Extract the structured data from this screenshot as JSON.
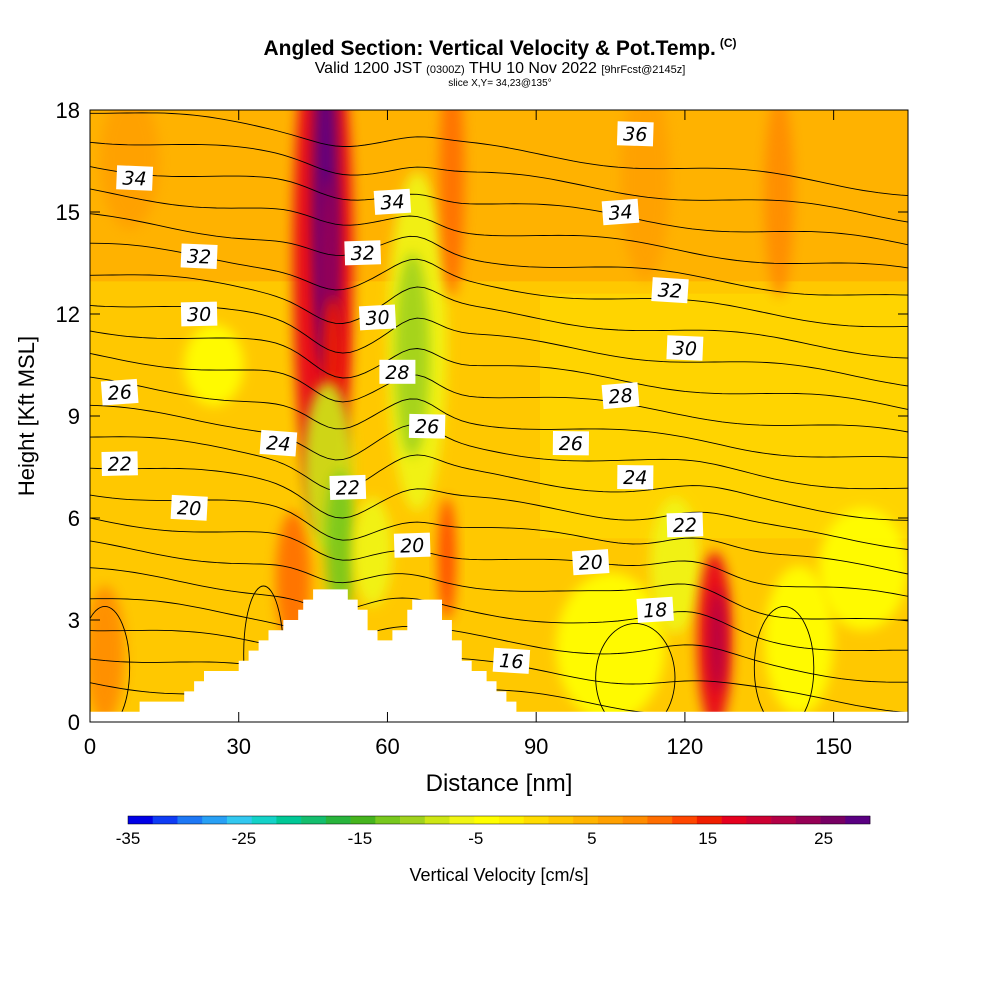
{
  "title": {
    "main": "Angled Section: Vertical Velocity & Pot.Temp.",
    "copyright": "(C)",
    "valid_prefix": "Valid 1200 JST",
    "valid_utc": "(0300Z)",
    "valid_date": "THU 10 Nov 2022",
    "forecast": "[9hrFcst@2145z]",
    "slice": "slice X,Y= 34,23@135°"
  },
  "chart_data": {
    "type": "heatmap",
    "xlabel": "Distance [nm]",
    "ylabel": "Height [Kft MSL]",
    "xlim": [
      0,
      165
    ],
    "ylim": [
      0,
      18
    ],
    "xticks": [
      0,
      30,
      60,
      90,
      120,
      150
    ],
    "yticks": [
      0,
      3,
      6,
      9,
      12,
      15,
      18
    ],
    "colorbar": {
      "label": "Vertical Velocity [cm/s]",
      "ticks": [
        -35,
        -25,
        -15,
        -5,
        5,
        15,
        25
      ],
      "range": [
        -35,
        29
      ],
      "colors": [
        "#0000e6",
        "#0f3cf5",
        "#1e78f5",
        "#28a0f5",
        "#32c8f0",
        "#14d2c8",
        "#00c896",
        "#14be6e",
        "#28b43c",
        "#46b41e",
        "#78c81e",
        "#a0d21e",
        "#cde614",
        "#f0f514",
        "#ffff00",
        "#fff000",
        "#ffdc00",
        "#ffc800",
        "#ffb400",
        "#ffa000",
        "#ff8c00",
        "#ff6e00",
        "#ff4600",
        "#f01e00",
        "#e6001e",
        "#cd0032",
        "#b40046",
        "#960055",
        "#780064",
        "#5a0082"
      ]
    },
    "terrain": [
      [
        0,
        0.3
      ],
      [
        10,
        0.3
      ],
      [
        10,
        0.6
      ],
      [
        19,
        0.6
      ],
      [
        19,
        0.9
      ],
      [
        21,
        0.9
      ],
      [
        21,
        1.2
      ],
      [
        23,
        1.2
      ],
      [
        23,
        1.5
      ],
      [
        30,
        1.5
      ],
      [
        30,
        1.8
      ],
      [
        32,
        1.8
      ],
      [
        32,
        2.1
      ],
      [
        34,
        2.1
      ],
      [
        34,
        2.4
      ],
      [
        36,
        2.4
      ],
      [
        36,
        2.7
      ],
      [
        39,
        2.7
      ],
      [
        39,
        3.0
      ],
      [
        42,
        3.0
      ],
      [
        42,
        3.3
      ],
      [
        43,
        3.3
      ],
      [
        43,
        3.6
      ],
      [
        45,
        3.6
      ],
      [
        45,
        3.9
      ],
      [
        52,
        3.9
      ],
      [
        52,
        3.6
      ],
      [
        54,
        3.6
      ],
      [
        54,
        3.3
      ],
      [
        56,
        3.3
      ],
      [
        56,
        2.7
      ],
      [
        58,
        2.7
      ],
      [
        58,
        2.4
      ],
      [
        61,
        2.4
      ],
      [
        61,
        2.7
      ],
      [
        64,
        2.7
      ],
      [
        64,
        3.3
      ],
      [
        65,
        3.3
      ],
      [
        65,
        3.6
      ],
      [
        71,
        3.6
      ],
      [
        71,
        3.0
      ],
      [
        73,
        3.0
      ],
      [
        73,
        2.4
      ],
      [
        75,
        2.4
      ],
      [
        75,
        1.8
      ],
      [
        77,
        1.8
      ],
      [
        77,
        1.5
      ],
      [
        80,
        1.5
      ],
      [
        80,
        1.2
      ],
      [
        82,
        1.2
      ],
      [
        82,
        0.9
      ],
      [
        84,
        0.9
      ],
      [
        84,
        0.6
      ],
      [
        86,
        0.6
      ],
      [
        86,
        0.3
      ],
      [
        165,
        0.3
      ]
    ],
    "cells": [
      {
        "x": 47,
        "y": 13.5,
        "rx": 6,
        "ry": 8,
        "value": 18
      },
      {
        "x": 47.5,
        "y": 15.5,
        "rx": 2.5,
        "ry": 5,
        "value": 28
      },
      {
        "x": 48,
        "y": 13,
        "rx": 2,
        "ry": 3,
        "value": 24
      },
      {
        "x": 49,
        "y": 11,
        "rx": 2,
        "ry": 1.5,
        "value": 16
      },
      {
        "x": 41,
        "y": 4.2,
        "rx": 3.5,
        "ry": 2,
        "value": 10
      },
      {
        "x": 66,
        "y": 11.2,
        "rx": 6,
        "ry": 5,
        "value": -6
      },
      {
        "x": 65,
        "y": 10.8,
        "rx": 3.5,
        "ry": 3,
        "value": -11
      },
      {
        "x": 48,
        "y": 7.5,
        "rx": 5,
        "ry": 2.5,
        "value": -9
      },
      {
        "x": 50.5,
        "y": 5.2,
        "rx": 3,
        "ry": 2.2,
        "value": -13
      },
      {
        "x": 57,
        "y": 5.0,
        "rx": 4,
        "ry": 1.6,
        "value": -6
      },
      {
        "x": 72,
        "y": 4.8,
        "rx": 1.8,
        "ry": 1.8,
        "value": 12
      },
      {
        "x": 73,
        "y": 16,
        "rx": 2.5,
        "ry": 3.5,
        "value": 10
      },
      {
        "x": 25,
        "y": 10.5,
        "rx": 6,
        "ry": 1.2,
        "value": -4
      },
      {
        "x": 105,
        "y": 2.2,
        "rx": 11,
        "ry": 2.2,
        "value": -5
      },
      {
        "x": 118,
        "y": 4.6,
        "rx": 5,
        "ry": 2,
        "value": -6
      },
      {
        "x": 126,
        "y": 2.4,
        "rx": 3.5,
        "ry": 2.6,
        "value": 18
      },
      {
        "x": 126.5,
        "y": 2.4,
        "rx": 1.5,
        "ry": 1.5,
        "value": 22
      },
      {
        "x": 143,
        "y": 2.4,
        "rx": 7,
        "ry": 2.2,
        "value": -4
      },
      {
        "x": 156,
        "y": 4.5,
        "rx": 9,
        "ry": 1.8,
        "value": -5
      },
      {
        "x": 139,
        "y": 15.5,
        "rx": 3,
        "ry": 3,
        "value": 9
      },
      {
        "x": 112,
        "y": 16,
        "rx": 5,
        "ry": 3,
        "value": 7
      },
      {
        "x": 8,
        "y": 16.5,
        "rx": 6,
        "ry": 2,
        "value": 7
      },
      {
        "x": 3,
        "y": 2.0,
        "rx": 4,
        "ry": 2,
        "value": 8
      }
    ],
    "isentropes": [
      {
        "value": 16,
        "label": "16",
        "label_x": 85,
        "label_y": 1.8
      },
      {
        "value": 18,
        "label": "18",
        "label_x": 114,
        "label_y": 3.3
      },
      {
        "value": 20,
        "label": "20",
        "label_x": 20,
        "label_y": 6.3
      },
      {
        "value": 20,
        "label": "20",
        "label_x": 65,
        "label_y": 5.2
      },
      {
        "value": 20,
        "label": "20",
        "label_x": 101,
        "label_y": 4.7
      },
      {
        "value": 22,
        "label": "22",
        "label_x": 6,
        "label_y": 7.6
      },
      {
        "value": 22,
        "label": "22",
        "label_x": 52,
        "label_y": 6.9
      },
      {
        "value": 22,
        "label": "22",
        "label_x": 120,
        "label_y": 5.8
      },
      {
        "value": 24,
        "label": "24",
        "label_x": 38,
        "label_y": 8.2
      },
      {
        "value": 24,
        "label": "24",
        "label_x": 110,
        "label_y": 7.2
      },
      {
        "value": 26,
        "label": "26",
        "label_x": 6,
        "label_y": 9.7
      },
      {
        "value": 26,
        "label": "26",
        "label_x": 68,
        "label_y": 8.7
      },
      {
        "value": 26,
        "label": "26",
        "label_x": 97,
        "label_y": 8.2
      },
      {
        "value": 28,
        "label": "28",
        "label_x": 62,
        "label_y": 10.3
      },
      {
        "value": 28,
        "label": "28",
        "label_x": 107,
        "label_y": 9.6
      },
      {
        "value": 30,
        "label": "30",
        "label_x": 22,
        "label_y": 12.0
      },
      {
        "value": 30,
        "label": "30",
        "label_x": 58,
        "label_y": 11.9
      },
      {
        "value": 30,
        "label": "30",
        "label_x": 120,
        "label_y": 11.0
      },
      {
        "value": 32,
        "label": "32",
        "label_x": 22,
        "label_y": 13.7
      },
      {
        "value": 32,
        "label": "32",
        "label_x": 55,
        "label_y": 13.8
      },
      {
        "value": 32,
        "label": "32",
        "label_x": 117,
        "label_y": 12.7
      },
      {
        "value": 34,
        "label": "34",
        "label_x": 9,
        "label_y": 16.0
      },
      {
        "value": 34,
        "label": "34",
        "label_x": 61,
        "label_y": 15.3
      },
      {
        "value": 34,
        "label": "34",
        "label_x": 107,
        "label_y": 15.0
      },
      {
        "value": 36,
        "label": "36",
        "label_x": 110,
        "label_y": 17.3
      }
    ]
  }
}
